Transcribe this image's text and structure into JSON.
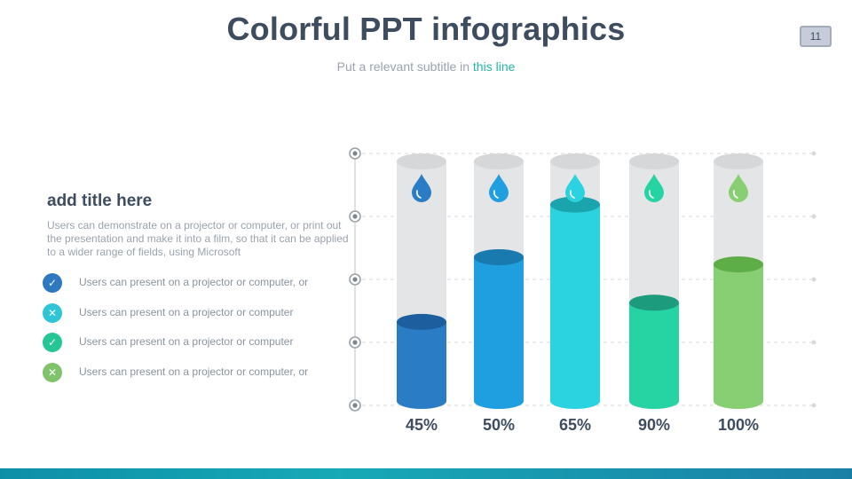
{
  "title": "Colorful PPT infographics",
  "subtitle": {
    "text": "Put a relevant subtitle in ",
    "highlight": "this line"
  },
  "page_number": "11",
  "left": {
    "title": "add title here",
    "description": "Users can demonstrate on a projector or computer, or print out the presentation and make it into a film, so that it can be applied to a wider range of fields, using Microsoft",
    "items": [
      {
        "icon": "check-icon",
        "symbol": "✓",
        "color": "#2e78c0",
        "text": "Users can present on a projector or computer, or"
      },
      {
        "icon": "x-icon",
        "symbol": "✕",
        "color": "#2ec6d6",
        "text": "Users can present on a projector or computer"
      },
      {
        "icon": "check-icon",
        "symbol": "✓",
        "color": "#24c696",
        "text": "Users can present on a projector or computer"
      },
      {
        "icon": "x-icon",
        "symbol": "✕",
        "color": "#7fc46c",
        "text": "Users can present on a projector or computer, or"
      }
    ]
  },
  "chart_data": {
    "type": "bar",
    "labels": [
      "45%",
      "50%",
      "65%",
      "90%",
      "100%"
    ],
    "values": [
      0.33,
      0.6,
      0.82,
      0.41,
      0.57
    ],
    "grid": true,
    "gridlines": 5,
    "series_colors": [
      "#2a7dc5",
      "#1f9ee0",
      "#2ad3df",
      "#26d3a3",
      "#88ce72"
    ],
    "top_colors": [
      "#1d5f9e",
      "#187aae",
      "#1aa4ad",
      "#1d9c7d",
      "#5eae48"
    ],
    "tube_color": "#e4e5e7",
    "tube_top_color": "#d6d7d9",
    "drop_colors": [
      "#2a7dc5",
      "#1f9ee0",
      "#2ad3df",
      "#26d3a3",
      "#88ce72"
    ]
  }
}
